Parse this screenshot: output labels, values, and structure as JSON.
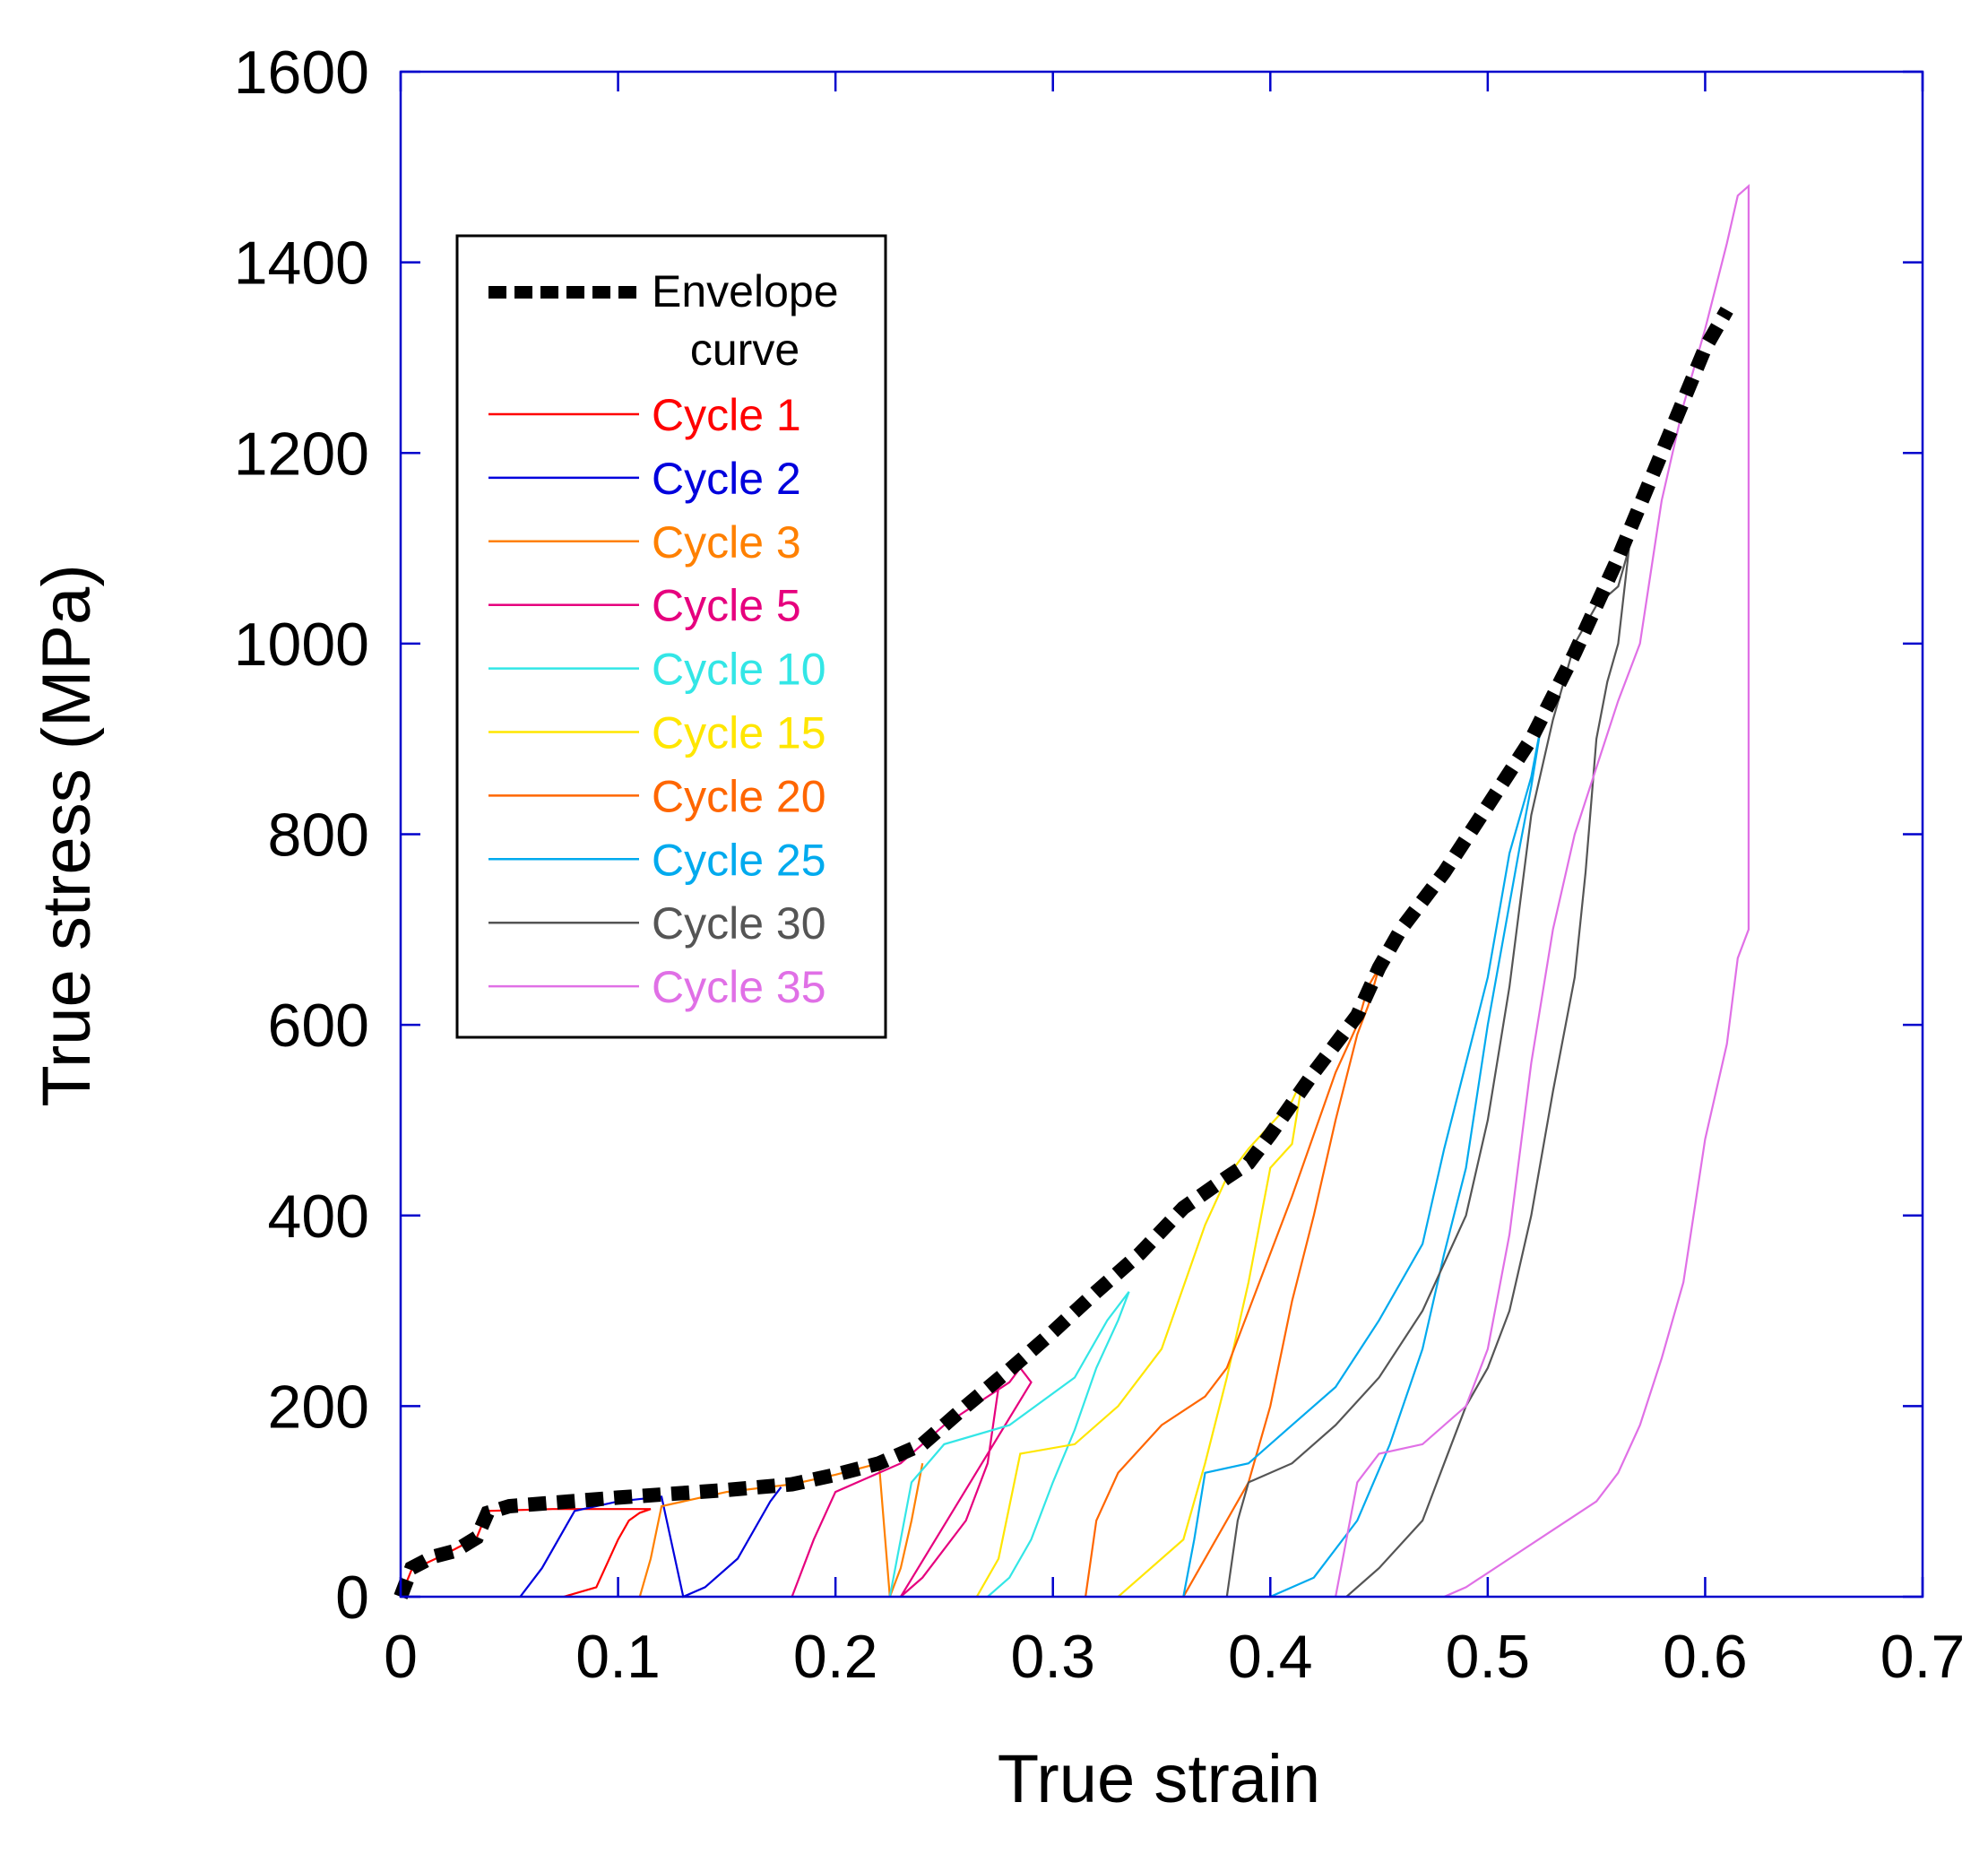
{
  "chart_data": {
    "type": "line",
    "title": "",
    "xlabel": "True strain",
    "ylabel": "True stress (MPa)",
    "xlim": [
      0,
      0.7
    ],
    "ylim": [
      0,
      1600
    ],
    "xticks": [
      {
        "value": 0,
        "label": "0"
      },
      {
        "value": 0.1,
        "label": "0.1"
      },
      {
        "value": 0.2,
        "label": "0.2"
      },
      {
        "value": 0.3,
        "label": "0.3"
      },
      {
        "value": 0.4,
        "label": "0.4"
      },
      {
        "value": 0.5,
        "label": "0.5"
      },
      {
        "value": 0.6,
        "label": "0.6"
      },
      {
        "value": 0.7,
        "label": "0.7"
      }
    ],
    "yticks": [
      {
        "value": 0,
        "label": "0"
      },
      {
        "value": 200,
        "label": "200"
      },
      {
        "value": 400,
        "label": "400"
      },
      {
        "value": 600,
        "label": "600"
      },
      {
        "value": 800,
        "label": "800"
      },
      {
        "value": 1000,
        "label": "1000"
      },
      {
        "value": 1200,
        "label": "1200"
      },
      {
        "value": 1400,
        "label": "1400"
      },
      {
        "value": 1600,
        "label": "1600"
      }
    ],
    "grid": false,
    "axis_color": "#0000cc",
    "legend_position": "upper-left",
    "envelope": {
      "name": "Envelope curve",
      "name_lines": [
        "Envelope",
        "curve"
      ],
      "color": "#000000",
      "style": "dashed",
      "points": [
        [
          0,
          0
        ],
        [
          0.005,
          30
        ],
        [
          0.015,
          42
        ],
        [
          0.025,
          48
        ],
        [
          0.035,
          62
        ],
        [
          0.04,
          88
        ],
        [
          0.05,
          95
        ],
        [
          0.1,
          104
        ],
        [
          0.15,
          112
        ],
        [
          0.18,
          118
        ],
        [
          0.2,
          128
        ],
        [
          0.22,
          140
        ],
        [
          0.24,
          160
        ],
        [
          0.26,
          200
        ],
        [
          0.28,
          238
        ],
        [
          0.3,
          278
        ],
        [
          0.32,
          320
        ],
        [
          0.34,
          360
        ],
        [
          0.36,
          408
        ],
        [
          0.38,
          440
        ],
        [
          0.39,
          455
        ],
        [
          0.4,
          485
        ],
        [
          0.42,
          550
        ],
        [
          0.44,
          610
        ],
        [
          0.45,
          660
        ],
        [
          0.46,
          700
        ],
        [
          0.48,
          760
        ],
        [
          0.5,
          830
        ],
        [
          0.52,
          900
        ],
        [
          0.54,
          990
        ],
        [
          0.56,
          1090
        ],
        [
          0.58,
          1200
        ],
        [
          0.6,
          1310
        ],
        [
          0.61,
          1350
        ]
      ]
    },
    "series": [
      {
        "name": "Cycle 1",
        "color": "#ff0000",
        "points": [
          [
            0.075,
            0
          ],
          [
            0.09,
            10
          ],
          [
            0.1,
            60
          ],
          [
            0.105,
            80
          ],
          [
            0.11,
            88
          ],
          [
            0.115,
            92
          ],
          [
            0.07,
            92
          ],
          [
            0.04,
            90
          ],
          [
            0.035,
            62
          ],
          [
            0.02,
            44
          ],
          [
            0.005,
            28
          ],
          [
            0,
            0
          ]
        ]
      },
      {
        "name": "Cycle 2",
        "color": "#0000dd",
        "points": [
          [
            0.055,
            0
          ],
          [
            0.065,
            30
          ],
          [
            0.08,
            90
          ],
          [
            0.1,
            100
          ],
          [
            0.12,
            105
          ],
          [
            0.13,
            0
          ],
          [
            0.14,
            10
          ],
          [
            0.155,
            40
          ],
          [
            0.17,
            100
          ],
          [
            0.175,
            115
          ]
        ]
      },
      {
        "name": "Cycle 3",
        "color": "#ff8000",
        "points": [
          [
            0.11,
            0
          ],
          [
            0.115,
            40
          ],
          [
            0.12,
            95
          ],
          [
            0.15,
            110
          ],
          [
            0.18,
            118
          ],
          [
            0.2,
            128
          ],
          [
            0.22,
            140
          ],
          [
            0.225,
            0
          ],
          [
            0.23,
            30
          ],
          [
            0.235,
            80
          ],
          [
            0.24,
            140
          ]
        ]
      },
      {
        "name": "Cycle 5",
        "color": "#e6007e",
        "points": [
          [
            0.18,
            0
          ],
          [
            0.19,
            60
          ],
          [
            0.2,
            110
          ],
          [
            0.23,
            140
          ],
          [
            0.25,
            180
          ],
          [
            0.28,
            225
          ],
          [
            0.285,
            240
          ],
          [
            0.29,
            225
          ],
          [
            0.23,
            0
          ],
          [
            0.24,
            20
          ],
          [
            0.26,
            80
          ],
          [
            0.27,
            140
          ],
          [
            0.275,
            220
          ]
        ]
      },
      {
        "name": "Cycle 10",
        "color": "#33e6e6",
        "points": [
          [
            0.27,
            0
          ],
          [
            0.28,
            20
          ],
          [
            0.29,
            60
          ],
          [
            0.3,
            120
          ],
          [
            0.31,
            175
          ],
          [
            0.32,
            240
          ],
          [
            0.33,
            290
          ],
          [
            0.335,
            320
          ],
          [
            0.325,
            290
          ],
          [
            0.31,
            230
          ],
          [
            0.28,
            180
          ],
          [
            0.25,
            160
          ],
          [
            0.235,
            120
          ],
          [
            0.23,
            60
          ],
          [
            0.225,
            0
          ]
        ]
      },
      {
        "name": "Cycle 15",
        "color": "#ffe600",
        "points": [
          [
            0.265,
            0
          ],
          [
            0.275,
            40
          ],
          [
            0.285,
            150
          ],
          [
            0.31,
            160
          ],
          [
            0.33,
            200
          ],
          [
            0.35,
            260
          ],
          [
            0.37,
            390
          ],
          [
            0.38,
            440
          ],
          [
            0.39,
            470
          ],
          [
            0.41,
            520
          ],
          [
            0.415,
            545
          ],
          [
            0.41,
            475
          ],
          [
            0.4,
            450
          ],
          [
            0.39,
            330
          ],
          [
            0.38,
            230
          ],
          [
            0.37,
            140
          ],
          [
            0.36,
            60
          ],
          [
            0.33,
            0
          ]
        ]
      },
      {
        "name": "Cycle 20",
        "color": "#ff6600",
        "points": [
          [
            0.315,
            0
          ],
          [
            0.32,
            80
          ],
          [
            0.33,
            130
          ],
          [
            0.35,
            180
          ],
          [
            0.37,
            210
          ],
          [
            0.38,
            240
          ],
          [
            0.39,
            300
          ],
          [
            0.41,
            420
          ],
          [
            0.43,
            550
          ],
          [
            0.44,
            600
          ],
          [
            0.445,
            640
          ],
          [
            0.45,
            660
          ],
          [
            0.445,
            620
          ],
          [
            0.44,
            590
          ],
          [
            0.43,
            500
          ],
          [
            0.42,
            400
          ],
          [
            0.41,
            310
          ],
          [
            0.4,
            200
          ],
          [
            0.39,
            120
          ],
          [
            0.375,
            60
          ],
          [
            0.36,
            0
          ]
        ]
      },
      {
        "name": "Cycle 25",
        "color": "#00aaee",
        "points": [
          [
            0.36,
            0
          ],
          [
            0.365,
            60
          ],
          [
            0.37,
            130
          ],
          [
            0.39,
            140
          ],
          [
            0.41,
            180
          ],
          [
            0.43,
            220
          ],
          [
            0.45,
            290
          ],
          [
            0.47,
            370
          ],
          [
            0.48,
            470
          ],
          [
            0.49,
            560
          ],
          [
            0.5,
            650
          ],
          [
            0.51,
            780
          ],
          [
            0.52,
            860
          ],
          [
            0.525,
            920
          ],
          [
            0.52,
            850
          ],
          [
            0.515,
            790
          ],
          [
            0.5,
            600
          ],
          [
            0.49,
            450
          ],
          [
            0.48,
            360
          ],
          [
            0.47,
            260
          ],
          [
            0.455,
            160
          ],
          [
            0.44,
            80
          ],
          [
            0.42,
            20
          ],
          [
            0.4,
            0
          ]
        ]
      },
      {
        "name": "Cycle 30",
        "color": "#555555",
        "points": [
          [
            0.38,
            0
          ],
          [
            0.385,
            80
          ],
          [
            0.39,
            120
          ],
          [
            0.41,
            140
          ],
          [
            0.43,
            180
          ],
          [
            0.45,
            230
          ],
          [
            0.47,
            300
          ],
          [
            0.49,
            400
          ],
          [
            0.5,
            500
          ],
          [
            0.51,
            640
          ],
          [
            0.52,
            820
          ],
          [
            0.53,
            920
          ],
          [
            0.54,
            1000
          ],
          [
            0.55,
            1040
          ],
          [
            0.56,
            1060
          ],
          [
            0.565,
            1100
          ],
          [
            0.56,
            1000
          ],
          [
            0.555,
            960
          ],
          [
            0.55,
            900
          ],
          [
            0.545,
            760
          ],
          [
            0.54,
            650
          ],
          [
            0.53,
            530
          ],
          [
            0.52,
            400
          ],
          [
            0.51,
            300
          ],
          [
            0.5,
            240
          ],
          [
            0.49,
            200
          ],
          [
            0.48,
            140
          ],
          [
            0.47,
            80
          ],
          [
            0.45,
            30
          ],
          [
            0.435,
            0
          ]
        ]
      },
      {
        "name": "Cycle 35",
        "color": "#e070e6",
        "points": [
          [
            0.43,
            0
          ],
          [
            0.435,
            60
          ],
          [
            0.44,
            120
          ],
          [
            0.45,
            150
          ],
          [
            0.47,
            160
          ],
          [
            0.49,
            200
          ],
          [
            0.5,
            260
          ],
          [
            0.51,
            380
          ],
          [
            0.52,
            560
          ],
          [
            0.53,
            700
          ],
          [
            0.54,
            800
          ],
          [
            0.55,
            870
          ],
          [
            0.56,
            940
          ],
          [
            0.57,
            1000
          ],
          [
            0.58,
            1150
          ],
          [
            0.59,
            1250
          ],
          [
            0.6,
            1330
          ],
          [
            0.61,
            1420
          ],
          [
            0.615,
            1470
          ],
          [
            0.62,
            1480
          ],
          [
            0.62,
            700
          ],
          [
            0.615,
            670
          ],
          [
            0.61,
            580
          ],
          [
            0.6,
            480
          ],
          [
            0.59,
            330
          ],
          [
            0.58,
            250
          ],
          [
            0.57,
            180
          ],
          [
            0.56,
            130
          ],
          [
            0.55,
            100
          ],
          [
            0.53,
            70
          ],
          [
            0.51,
            40
          ],
          [
            0.49,
            10
          ],
          [
            0.48,
            0
          ]
        ]
      }
    ]
  }
}
